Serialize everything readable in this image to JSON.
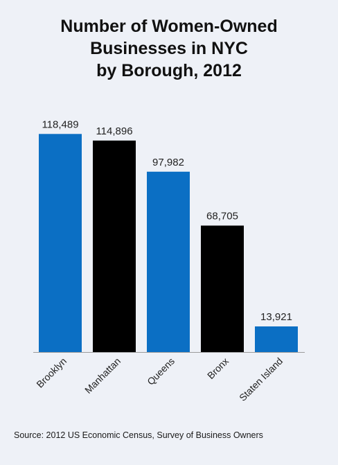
{
  "chart_data": {
    "type": "bar",
    "title_lines": [
      "Number of Women-Owned",
      "Businesses in NYC",
      "by Borough, 2012"
    ],
    "categories": [
      "Brooklyn",
      "Manhattan",
      "Queens",
      "Bronx",
      "Staten Island"
    ],
    "values": [
      118489,
      114896,
      97982,
      68705,
      13921
    ],
    "value_labels": [
      "118,489",
      "114,896",
      "97,982",
      "68,705",
      "13,921"
    ],
    "bar_colors": [
      "#0b6fc4",
      "#000000",
      "#0b6fc4",
      "#000000",
      "#0b6fc4"
    ],
    "xlabel": "",
    "ylabel": "",
    "ylim": [
      0,
      125000
    ],
    "grid": false,
    "legend": "none"
  },
  "source": "Source: 2012 US Economic Census, Survey of Business Owners",
  "colors": {
    "background": "#eef1f7",
    "blue": "#0b6fc4",
    "black": "#000000",
    "baseline": "#9a9a9a"
  }
}
